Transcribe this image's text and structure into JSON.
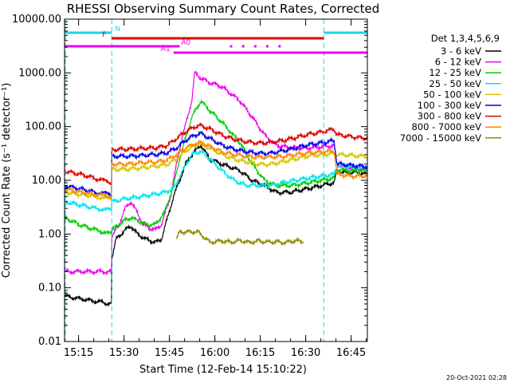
{
  "colors": {
    "background": "#ffffff",
    "axis": "#000000",
    "boundary": "#22d3e0",
    "flag_f": "#e00000",
    "flag_a": "#ee00ee",
    "flag_n": "#22d3e0"
  },
  "chart_data": {
    "type": "line",
    "title": "RHESSI Observing Summary Count Rates, Corrected",
    "xlabel": "Start Time (12-Feb-14 15:10:22)",
    "ylabel": "Corrected Count Rate (s⁻¹ detector⁻¹)",
    "yscale": "log",
    "ylim": [
      0.01,
      10000
    ],
    "xlim_minutes": [
      0,
      100
    ],
    "x_tick_labels": [
      "15:15",
      "15:30",
      "15:45",
      "16:00",
      "16:15",
      "16:30",
      "16:45"
    ],
    "y_tick_labels": [
      "0.01",
      "0.10",
      "1.00",
      "10.00",
      "100.00",
      "1000.00",
      "10000.00"
    ],
    "legend_title": "Det 1,3,4,5,6,9",
    "legend_placement": "right",
    "timestamp": "20-Oct-2021 02:28",
    "boundaries_minutes": [
      15.6,
      85.6,
      100
    ],
    "flags": [
      {
        "label": "N",
        "color": "#22d3e0",
        "segments": [
          [
            0,
            15.6
          ],
          [
            85.6,
            100
          ]
        ]
      },
      {
        "label": "F",
        "color": "#e00000",
        "segments": [
          [
            15.6,
            85.6
          ]
        ]
      },
      {
        "label": "A0",
        "color": "#ee00ee",
        "segments": [
          [
            0,
            38
          ]
        ],
        "dots_minutes": [
          55,
          59,
          63,
          67,
          71
        ]
      },
      {
        "label": "A1",
        "color": "#ee00ee",
        "segments": [
          [
            36,
            100
          ]
        ]
      }
    ],
    "series": [
      {
        "name": "3 - 6 keV",
        "color": "#000000",
        "x": [
          0,
          15.5,
          15.6,
          17,
          20,
          22,
          24,
          27,
          30,
          32,
          36,
          40,
          42,
          45,
          48,
          52,
          58,
          62,
          66,
          70,
          75,
          80,
          85,
          89,
          90,
          93,
          96,
          100
        ],
        "y": [
          0.07,
          0.05,
          0.35,
          0.8,
          1.2,
          1.4,
          1.0,
          0.8,
          0.7,
          0.8,
          5,
          20,
          30,
          45,
          25,
          20,
          15,
          10,
          8,
          6,
          6,
          7,
          8,
          9,
          15,
          14,
          14,
          13
        ]
      },
      {
        "name": "6 - 12 keV",
        "color": "#ee00ee",
        "x": [
          0,
          15.5,
          15.6,
          18,
          20,
          22,
          24,
          26,
          28,
          30,
          32,
          35,
          38,
          42,
          43,
          45,
          47,
          52,
          58,
          62,
          66,
          70,
          75,
          80,
          85,
          89,
          90,
          93,
          96,
          100
        ],
        "y": [
          0.2,
          0.2,
          0.9,
          1.5,
          3.0,
          4.0,
          2.5,
          1.5,
          1.3,
          1.2,
          1.5,
          5,
          40,
          300,
          1000,
          800,
          700,
          550,
          300,
          150,
          70,
          45,
          40,
          40,
          42,
          44,
          20,
          18,
          17,
          16
        ]
      },
      {
        "name": "12 - 25 keV",
        "color": "#00cc00",
        "x": [
          0,
          5,
          10,
          15.5,
          15.6,
          18,
          20,
          22,
          24,
          27,
          30,
          33,
          36,
          38,
          42,
          45,
          48,
          52,
          58,
          62,
          66,
          70,
          75,
          80,
          85,
          89,
          90,
          95,
          100
        ],
        "y": [
          2.0,
          1.5,
          1.2,
          1.0,
          1.2,
          1.5,
          1.8,
          2.0,
          1.8,
          1.5,
          1.5,
          2.5,
          8,
          25,
          150,
          300,
          200,
          120,
          50,
          20,
          10,
          8,
          8,
          9,
          10,
          11,
          16,
          15,
          15
        ]
      },
      {
        "name": "25 - 50 keV",
        "color": "#00e5ee",
        "x": [
          0,
          5,
          10,
          15.5,
          15.6,
          20,
          25,
          30,
          33,
          36,
          39,
          42,
          45,
          48,
          52,
          56,
          60,
          64,
          68,
          72,
          76,
          80,
          85,
          89,
          90,
          95,
          100
        ],
        "y": [
          4,
          3.5,
          3.0,
          2.8,
          4,
          4.5,
          5,
          5.5,
          6,
          7,
          15,
          30,
          35,
          25,
          15,
          10,
          8,
          8,
          8,
          9,
          10,
          11,
          12,
          13,
          19,
          18,
          17
        ]
      },
      {
        "name": "50 - 100 keV",
        "color": "#d4c800",
        "x": [
          0,
          5,
          10,
          15.5,
          15.6,
          20,
          25,
          30,
          34,
          37,
          40,
          43,
          45,
          48,
          52,
          56,
          60,
          64,
          68,
          72,
          76,
          80,
          85,
          89,
          90,
          95,
          100
        ],
        "y": [
          6,
          5.5,
          5,
          4.5,
          16,
          16,
          17,
          18,
          20,
          25,
          35,
          45,
          50,
          40,
          30,
          25,
          22,
          20,
          20,
          22,
          25,
          28,
          30,
          32,
          30,
          29,
          28
        ]
      },
      {
        "name": "100 - 300 keV",
        "color": "#0000ee",
        "x": [
          0,
          5,
          10,
          15.5,
          15.6,
          20,
          25,
          30,
          34,
          37,
          40,
          43,
          45,
          48,
          52,
          56,
          60,
          64,
          68,
          72,
          76,
          80,
          85,
          89,
          90,
          95,
          100
        ],
        "y": [
          8,
          7,
          6,
          5.5,
          28,
          28,
          29,
          30,
          33,
          40,
          55,
          70,
          75,
          60,
          45,
          38,
          34,
          32,
          32,
          35,
          40,
          45,
          50,
          55,
          20,
          19,
          18
        ]
      },
      {
        "name": "300 - 800 keV",
        "color": "#dd0000",
        "x": [
          0,
          5,
          10,
          15.5,
          15.6,
          20,
          25,
          30,
          34,
          37,
          40,
          43,
          45,
          48,
          52,
          56,
          60,
          64,
          68,
          72,
          76,
          80,
          85,
          89,
          90,
          95,
          100
        ],
        "y": [
          15,
          13,
          11,
          9,
          37,
          38,
          39,
          40,
          45,
          60,
          80,
          100,
          105,
          90,
          70,
          58,
          52,
          50,
          50,
          55,
          62,
          70,
          80,
          90,
          70,
          65,
          60
        ]
      },
      {
        "name": "800 - 7000 keV",
        "color": "#ff8800",
        "x": [
          0,
          5,
          10,
          15.5,
          15.6,
          20,
          25,
          30,
          34,
          37,
          40,
          43,
          45,
          48,
          52,
          56,
          60,
          64,
          68,
          72,
          76,
          80,
          85,
          89,
          90,
          95,
          100
        ],
        "y": [
          7,
          6,
          5.5,
          5,
          20,
          20,
          21,
          22,
          24,
          30,
          40,
          48,
          50,
          42,
          34,
          30,
          28,
          27,
          27,
          28,
          30,
          32,
          34,
          35,
          13,
          12,
          12
        ]
      },
      {
        "name": "7000 - 15000 keV",
        "color": "#8c8c00",
        "x": [
          37,
          38,
          41,
          44,
          48,
          52,
          55,
          58,
          61,
          64,
          67,
          70,
          73,
          76,
          79
        ],
        "y": [
          0.8,
          1.1,
          1.1,
          1.1,
          0.7,
          0.75,
          0.7,
          0.75,
          0.7,
          0.75,
          0.7,
          0.72,
          0.7,
          0.75,
          0.72
        ]
      }
    ]
  }
}
